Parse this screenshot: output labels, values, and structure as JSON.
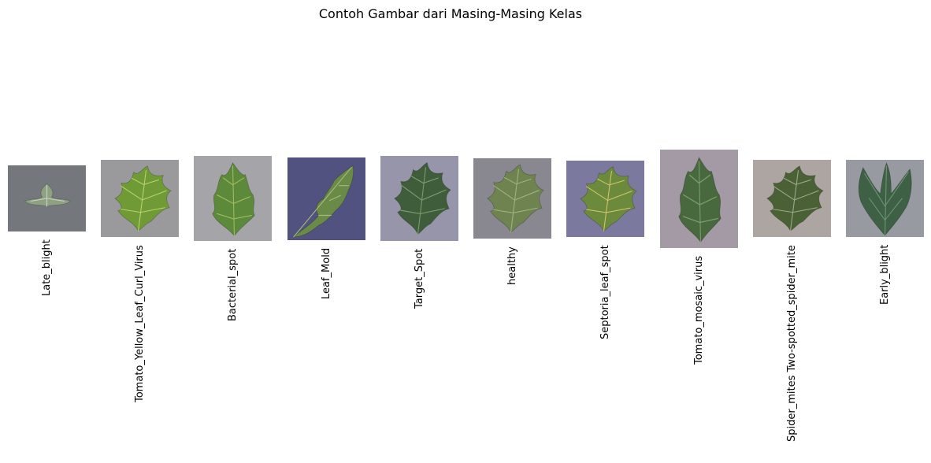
{
  "title": "Contoh Gambar dari Masing-Masing Kelas",
  "panels": [
    {
      "label": "Late_blight",
      "bg": "#65686c",
      "leaf": "#8fa183",
      "vein": "#c9d3c3",
      "shape": "small"
    },
    {
      "label": "Tomato_Yellow_Leaf_Curl_Virus",
      "bg": "#8f8e91",
      "leaf": "#6f9a35",
      "vein": "#b8d36a",
      "shape": "broad"
    },
    {
      "label": "Bacterial_spot",
      "bg": "#9a9aa0",
      "leaf": "#5d8a3a",
      "vein": "#9fba62",
      "shape": "upright"
    },
    {
      "label": "Leaf_Mold",
      "bg": "#3e3f72",
      "leaf": "#6a8a47",
      "vein": "#a8b878",
      "shape": "branch"
    },
    {
      "label": "Target_Spot",
      "bg": "#8b8aa0",
      "leaf": "#3f5d3a",
      "vein": "#7e9870",
      "shape": "broad"
    },
    {
      "label": "healthy",
      "bg": "#7c7b85",
      "leaf": "#6f8351",
      "vein": "#9fb27e",
      "shape": "broad"
    },
    {
      "label": "Septoria_leaf_spot",
      "bg": "#6e6a93",
      "leaf": "#6b8a3c",
      "vein": "#d2c36c",
      "shape": "broad"
    },
    {
      "label": "Tomato_mosaic_virus",
      "bg": "#9a8f9c",
      "leaf": "#47693d",
      "vein": "#7d9b6b",
      "shape": "upright"
    },
    {
      "label": "Spider_mites Two-spotted_spider_mite",
      "bg": "#a49b98",
      "leaf": "#4a6136",
      "vein": "#9ba98a",
      "shape": "broad"
    },
    {
      "label": "Early_blight",
      "bg": "#8c8f96",
      "leaf": "#3e6145",
      "vein": "#6f9276",
      "shape": "fan"
    }
  ]
}
